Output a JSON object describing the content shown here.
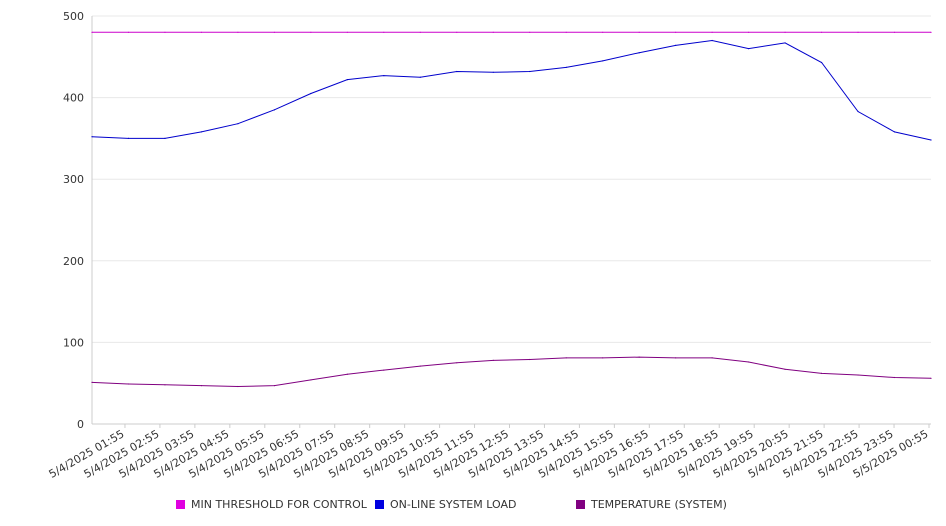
{
  "chart_data": {
    "type": "line",
    "title": "",
    "xlabel": "",
    "ylabel": "",
    "ylim": [
      0,
      500
    ],
    "yticks": [
      0,
      100,
      200,
      300,
      400,
      500
    ],
    "grid": true,
    "legend_position": "bottom",
    "x_tick_labels": [
      "5/4/2025 01:55",
      "5/4/2025 02:55",
      "5/4/2025 03:55",
      "5/4/2025 04:55",
      "5/4/2025 05:55",
      "5/4/2025 06:55",
      "5/4/2025 07:55",
      "5/4/2025 08:55",
      "5/4/2025 09:55",
      "5/4/2025 10:55",
      "5/4/2025 11:55",
      "5/4/2025 12:55",
      "5/4/2025 13:55",
      "5/4/2025 14:55",
      "5/4/2025 15:55",
      "5/4/2025 16:55",
      "5/4/2025 17:55",
      "5/4/2025 18:55",
      "5/4/2025 19:55",
      "5/4/2025 20:55",
      "5/4/2025 21:55",
      "5/4/2025 22:55",
      "5/4/2025 23:55",
      "5/5/2025 00:55"
    ],
    "x": [
      "5/4/2025 01:55",
      "5/4/2025 02:55",
      "5/4/2025 03:55",
      "5/4/2025 04:55",
      "5/4/2025 05:55",
      "5/4/2025 06:55",
      "5/4/2025 07:55",
      "5/4/2025 08:55",
      "5/4/2025 09:55",
      "5/4/2025 10:55",
      "5/4/2025 11:55",
      "5/4/2025 12:55",
      "5/4/2025 13:55",
      "5/4/2025 14:55",
      "5/4/2025 15:55",
      "5/4/2025 16:55",
      "5/4/2025 17:55",
      "5/4/2025 18:55",
      "5/4/2025 19:55",
      "5/4/2025 20:55",
      "5/4/2025 21:55",
      "5/4/2025 22:55",
      "5/4/2025 23:55",
      "5/5/2025 00:55"
    ],
    "series": [
      {
        "name": "MIN THRESHOLD FOR CONTROL",
        "color": "#cc00cc",
        "values": [
          480,
          480,
          480,
          480,
          480,
          480,
          480,
          480,
          480,
          480,
          480,
          480,
          480,
          480,
          480,
          480,
          480,
          480,
          480,
          480,
          480,
          480,
          480,
          480
        ]
      },
      {
        "name": "ON-LINE SYSTEM LOAD",
        "color": "#0000cc",
        "values": [
          352,
          350,
          350,
          358,
          368,
          385,
          405,
          422,
          427,
          425,
          432,
          431,
          432,
          437,
          445,
          455,
          464,
          470,
          460,
          467,
          443,
          383,
          358,
          348
        ]
      },
      {
        "name": "TEMPERATURE (SYSTEM)",
        "color": "#800080",
        "values": [
          51,
          49,
          48,
          47,
          46,
          47,
          54,
          61,
          66,
          71,
          75,
          78,
          79,
          81,
          81,
          82,
          81,
          81,
          76,
          67,
          62,
          60,
          57,
          56
        ]
      }
    ]
  }
}
